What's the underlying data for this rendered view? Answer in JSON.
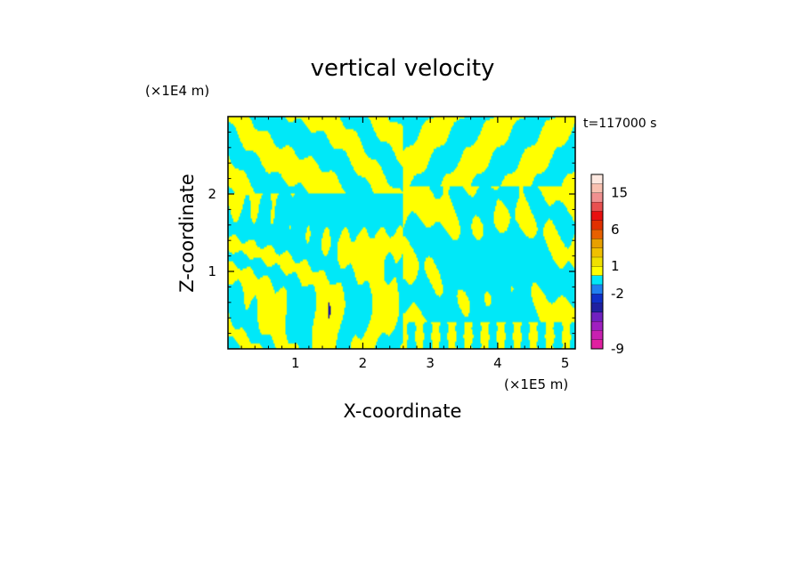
{
  "chart_data": {
    "type": "heatmap",
    "title": "vertical velocity",
    "xlabel": "X-coordinate",
    "ylabel": "Z-coordinate",
    "x_unit": "(×1E5 m)",
    "y_unit": "(×1E4 m)",
    "time_label": "t=117000 s",
    "xlim": [
      0,
      5.15
    ],
    "ylim": [
      0,
      3.0
    ],
    "xticks": [
      1,
      2,
      3,
      4,
      5
    ],
    "yticks": [
      1,
      2
    ],
    "colorbar": {
      "tick_labels": [
        "15",
        "6",
        "1",
        "-2",
        "-9"
      ],
      "tick_values": [
        15,
        6,
        1,
        -2,
        -9
      ],
      "levels": [
        {
          "from": -12,
          "to": -10,
          "color": "#e020a0"
        },
        {
          "from": -10,
          "to": -8,
          "color": "#c820b0"
        },
        {
          "from": -8,
          "to": -6,
          "color": "#a020c0"
        },
        {
          "from": -6,
          "to": -4,
          "color": "#7020c0"
        },
        {
          "from": -4,
          "to": -3,
          "color": "#2020a0"
        },
        {
          "from": -3,
          "to": -2,
          "color": "#1030c8"
        },
        {
          "from": -2,
          "to": -1,
          "color": "#2080f0"
        },
        {
          "from": -1,
          "to": 0,
          "color": "#00e8f8"
        },
        {
          "from": 0,
          "to": 1,
          "color": "#ffff00"
        },
        {
          "from": 1,
          "to": 2,
          "color": "#f0e000"
        },
        {
          "from": 2,
          "to": 3,
          "color": "#f0c000"
        },
        {
          "from": 3,
          "to": 4,
          "color": "#e8a000"
        },
        {
          "from": 4,
          "to": 6,
          "color": "#e86000"
        },
        {
          "from": 6,
          "to": 8,
          "color": "#e03000"
        },
        {
          "from": 8,
          "to": 10,
          "color": "#e81010"
        },
        {
          "from": 10,
          "to": 12,
          "color": "#e85050"
        },
        {
          "from": 12,
          "to": 15,
          "color": "#f09090"
        },
        {
          "from": 15,
          "to": 18,
          "color": "#f8c0b0"
        },
        {
          "from": 18,
          "to": 24,
          "color": "#fde8e0"
        }
      ]
    },
    "field_summary": "Vertical velocity field dominated by alternating positive (yellow, 0 to 1) and negative (cyan, -1 to 0) bands; tilted stripes on the left half, large blob structures on the right half; a small strong negative spot near x=1.5, z=0.5."
  }
}
